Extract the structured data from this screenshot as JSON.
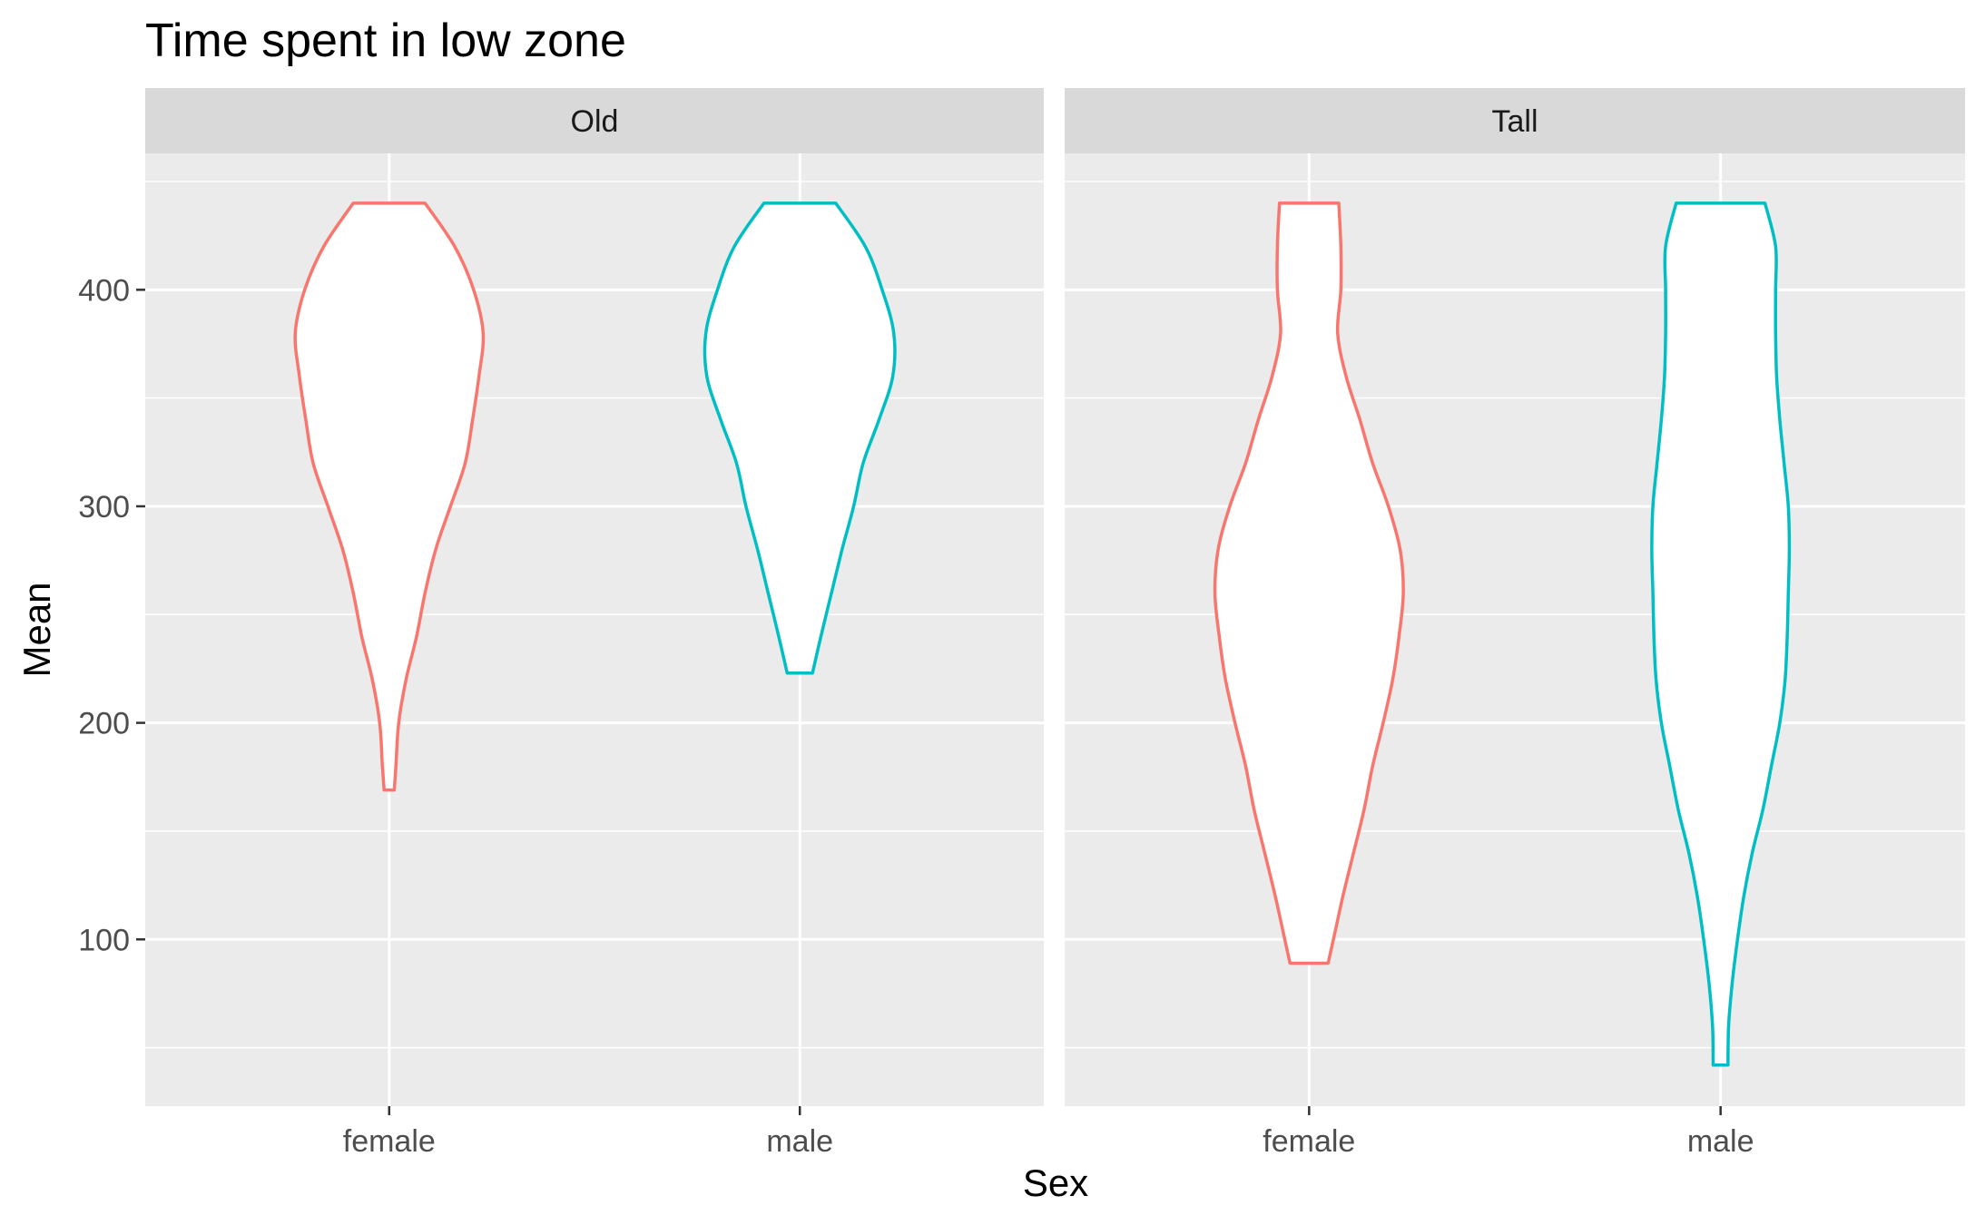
{
  "chart_data": {
    "type": "violin",
    "title": "Time spent in low zone",
    "xlabel": "Sex",
    "ylabel": "Mean",
    "ylim": [
      23,
      463
    ],
    "y_ticks": [
      100,
      200,
      300,
      400
    ],
    "y_tick_labels": [
      "100",
      "200",
      "300",
      "400"
    ],
    "categories": [
      "female",
      "male"
    ],
    "grid": true,
    "colors": {
      "female": "#F8766D",
      "male": "#00BFC4"
    },
    "panels": [
      {
        "label": "Old",
        "violins": [
          {
            "category": "female",
            "min": 169,
            "max": 440,
            "profile": [
              [
                169,
                0.024
              ],
              [
                180,
                0.032
              ],
              [
                200,
                0.045
              ],
              [
                220,
                0.08
              ],
              [
                240,
                0.13
              ],
              [
                260,
                0.17
              ],
              [
                280,
                0.22
              ],
              [
                300,
                0.29
              ],
              [
                320,
                0.36
              ],
              [
                340,
                0.395
              ],
              [
                360,
                0.425
              ],
              [
                380,
                0.445
              ],
              [
                400,
                0.4
              ],
              [
                420,
                0.31
              ],
              [
                440,
                0.17
              ]
            ]
          },
          {
            "category": "male",
            "min": 223,
            "max": 440,
            "profile": [
              [
                223,
                0.06
              ],
              [
                240,
                0.1
              ],
              [
                260,
                0.15
              ],
              [
                280,
                0.2
              ],
              [
                300,
                0.255
              ],
              [
                320,
                0.3
              ],
              [
                340,
                0.375
              ],
              [
                360,
                0.44
              ],
              [
                380,
                0.445
              ],
              [
                400,
                0.39
              ],
              [
                420,
                0.31
              ],
              [
                440,
                0.17
              ]
            ]
          }
        ]
      },
      {
        "label": "Tall",
        "violins": [
          {
            "category": "female",
            "min": 89,
            "max": 440,
            "profile": [
              [
                89,
                0.09
              ],
              [
                100,
                0.115
              ],
              [
                120,
                0.16
              ],
              [
                140,
                0.21
              ],
              [
                160,
                0.26
              ],
              [
                180,
                0.3
              ],
              [
                200,
                0.35
              ],
              [
                220,
                0.395
              ],
              [
                240,
                0.425
              ],
              [
                260,
                0.445
              ],
              [
                280,
                0.43
              ],
              [
                300,
                0.375
              ],
              [
                320,
                0.3
              ],
              [
                340,
                0.24
              ],
              [
                360,
                0.175
              ],
              [
                380,
                0.135
              ],
              [
                400,
                0.15
              ],
              [
                420,
                0.15
              ],
              [
                440,
                0.14
              ]
            ]
          },
          {
            "category": "male",
            "min": 42,
            "max": 440,
            "profile": [
              [
                42,
                0.035
              ],
              [
                60,
                0.038
              ],
              [
                80,
                0.055
              ],
              [
                100,
                0.08
              ],
              [
                120,
                0.11
              ],
              [
                140,
                0.15
              ],
              [
                160,
                0.2
              ],
              [
                180,
                0.24
              ],
              [
                200,
                0.28
              ],
              [
                220,
                0.305
              ],
              [
                240,
                0.315
              ],
              [
                260,
                0.32
              ],
              [
                280,
                0.325
              ],
              [
                300,
                0.32
              ],
              [
                320,
                0.3
              ],
              [
                340,
                0.28
              ],
              [
                360,
                0.265
              ],
              [
                380,
                0.26
              ],
              [
                400,
                0.26
              ],
              [
                420,
                0.26
              ],
              [
                440,
                0.21
              ]
            ]
          }
        ]
      }
    ]
  }
}
